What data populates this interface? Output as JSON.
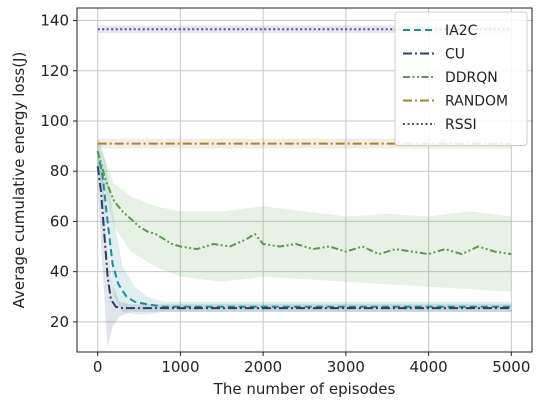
{
  "chart_data": {
    "type": "line",
    "title": "",
    "xlabel": "The number of episodes",
    "ylabel": "Average cumulative energy loss(J)",
    "xlim": [
      -250,
      5250
    ],
    "ylim": [
      8,
      145
    ],
    "xticks": [
      0,
      1000,
      2000,
      3000,
      4000,
      5000
    ],
    "yticks": [
      20,
      40,
      60,
      80,
      100,
      120,
      140
    ],
    "grid": true,
    "legend_position": "top-right",
    "series": [
      {
        "name": "IA2C",
        "color": "#1f8a9a",
        "dash": "dashed",
        "points": [
          [
            0,
            88
          ],
          [
            60,
            78
          ],
          [
            120,
            60
          ],
          [
            180,
            43
          ],
          [
            250,
            35
          ],
          [
            350,
            30
          ],
          [
            450,
            28
          ],
          [
            600,
            27
          ],
          [
            800,
            26
          ],
          [
            1000,
            26
          ],
          [
            2000,
            26
          ],
          [
            3000,
            26
          ],
          [
            4000,
            26
          ],
          [
            5000,
            26
          ]
        ],
        "band": [
          [
            0,
            94,
            82
          ],
          [
            100,
            84,
            60
          ],
          [
            200,
            60,
            30
          ],
          [
            300,
            42,
            24
          ],
          [
            450,
            34,
            23
          ],
          [
            600,
            30,
            23
          ],
          [
            800,
            28,
            24
          ],
          [
            1000,
            28,
            24
          ],
          [
            5000,
            28,
            24
          ]
        ]
      },
      {
        "name": "CU",
        "color": "#2c3e66",
        "dash": "dashdot",
        "points": [
          [
            0,
            82
          ],
          [
            40,
            72
          ],
          [
            80,
            55
          ],
          [
            120,
            38
          ],
          [
            160,
            29
          ],
          [
            220,
            26
          ],
          [
            300,
            25.5
          ],
          [
            500,
            25.5
          ],
          [
            1000,
            25.5
          ],
          [
            2000,
            25.5
          ],
          [
            3000,
            25.5
          ],
          [
            4000,
            25.5
          ],
          [
            5000,
            25.5
          ]
        ],
        "band": [
          [
            0,
            90,
            74
          ],
          [
            60,
            78,
            40
          ],
          [
            120,
            50,
            10
          ],
          [
            180,
            35,
            18
          ],
          [
            260,
            28,
            22
          ],
          [
            400,
            27,
            24
          ],
          [
            5000,
            27,
            24
          ]
        ]
      },
      {
        "name": "DDRQN",
        "color": "#5a9a4a",
        "dash": "dashdotdot",
        "points": [
          [
            0,
            88
          ],
          [
            100,
            76
          ],
          [
            200,
            68
          ],
          [
            300,
            64
          ],
          [
            400,
            61
          ],
          [
            500,
            58
          ],
          [
            600,
            56
          ],
          [
            700,
            55
          ],
          [
            800,
            53
          ],
          [
            900,
            51
          ],
          [
            1000,
            50
          ],
          [
            1200,
            49
          ],
          [
            1400,
            51
          ],
          [
            1600,
            50
          ],
          [
            1800,
            53
          ],
          [
            1900,
            55
          ],
          [
            2000,
            51
          ],
          [
            2200,
            50
          ],
          [
            2400,
            51
          ],
          [
            2600,
            49
          ],
          [
            2800,
            50
          ],
          [
            3000,
            48
          ],
          [
            3200,
            50
          ],
          [
            3400,
            47
          ],
          [
            3600,
            49
          ],
          [
            3800,
            48
          ],
          [
            4000,
            47
          ],
          [
            4200,
            49
          ],
          [
            4400,
            47
          ],
          [
            4600,
            50
          ],
          [
            4800,
            48
          ],
          [
            5000,
            47
          ]
        ],
        "band": [
          [
            0,
            92,
            82
          ],
          [
            200,
            75,
            58
          ],
          [
            400,
            70,
            48
          ],
          [
            700,
            66,
            42
          ],
          [
            1000,
            64,
            38
          ],
          [
            1500,
            64,
            36
          ],
          [
            2000,
            66,
            38
          ],
          [
            2500,
            64,
            37
          ],
          [
            3000,
            62,
            36
          ],
          [
            3500,
            63,
            35
          ],
          [
            4000,
            62,
            34
          ],
          [
            4500,
            64,
            33
          ],
          [
            5000,
            62,
            32
          ]
        ]
      },
      {
        "name": "RANDOM",
        "color": "#a8803a",
        "dash": "dashdot",
        "points": [
          [
            0,
            91
          ],
          [
            1000,
            91
          ],
          [
            2000,
            91
          ],
          [
            3000,
            91
          ],
          [
            4000,
            91
          ],
          [
            5000,
            91
          ]
        ],
        "band": [
          [
            0,
            93,
            89
          ],
          [
            5000,
            93,
            89
          ]
        ]
      },
      {
        "name": "RSSI",
        "color": "#5b4a8e",
        "dash": "dotted",
        "points": [
          [
            0,
            136.5
          ],
          [
            1000,
            136.5
          ],
          [
            2000,
            136.5
          ],
          [
            3000,
            136.5
          ],
          [
            4000,
            136.5
          ],
          [
            5000,
            136.5
          ]
        ],
        "band": [
          [
            0,
            138,
            135
          ],
          [
            5000,
            138,
            135
          ]
        ]
      }
    ]
  }
}
